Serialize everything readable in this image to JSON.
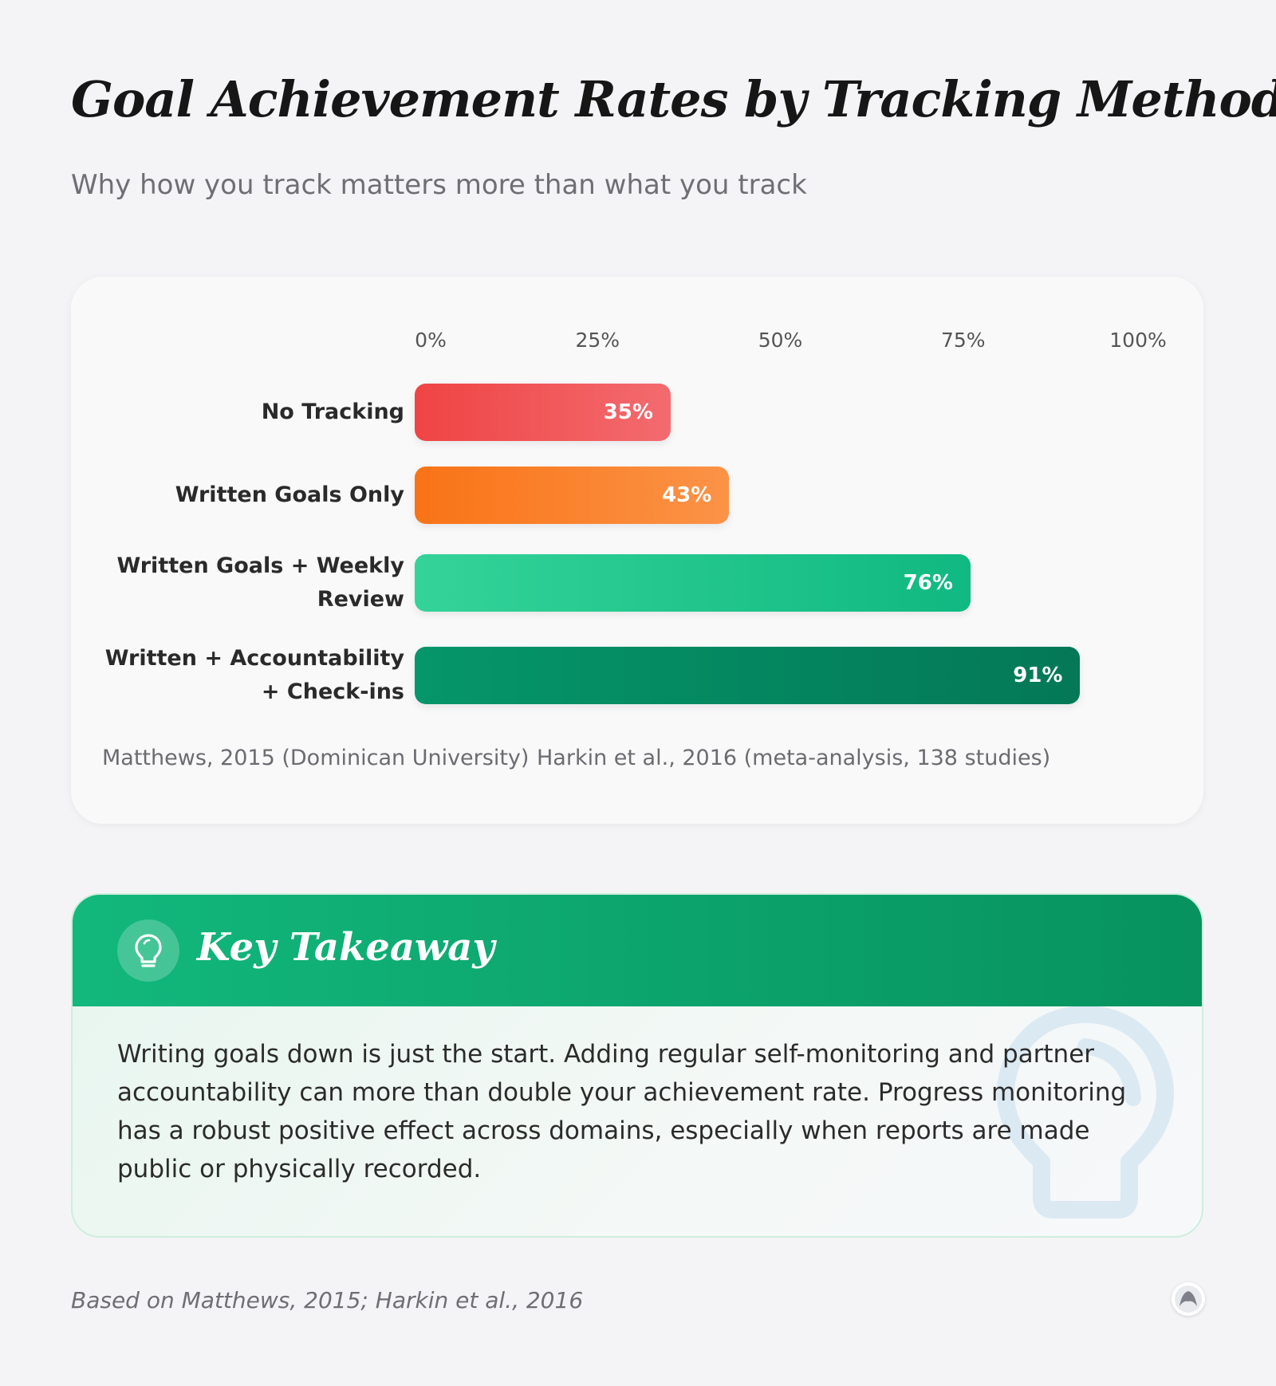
{
  "title": "Goal Achievement Rates by Tracking Method",
  "subtitle": "Why how you track matters more than what you track",
  "chart_data": {
    "type": "bar",
    "orientation": "horizontal",
    "categories": [
      "No Tracking",
      "Written Goals Only",
      "Written Goals + Weekly Review",
      "Written + Accountability + Check-ins"
    ],
    "values": [
      35,
      43,
      76,
      91
    ],
    "value_labels": [
      "35%",
      "43%",
      "76%",
      "91%"
    ],
    "xlim": [
      0,
      100
    ],
    "tick_values": [
      0,
      25,
      50,
      75,
      100
    ],
    "tick_labels": [
      "0%",
      "25%",
      "50%",
      "75%",
      "100%"
    ],
    "bar_colors": [
      [
        "#ef4444",
        "#f36b6f"
      ],
      [
        "#f97316",
        "#fb9347"
      ],
      [
        "#34d399",
        "#10b981"
      ],
      [
        "#059669",
        "#047857"
      ]
    ],
    "sources": [
      "Matthews, 2015 (Dominican University)",
      "Harkin et al., 2016 (meta-analysis, 138 studies)"
    ],
    "grid": false
  },
  "takeaway": {
    "icon": "lightbulb-icon",
    "title": "Key Takeaway",
    "text": "Writing goals down is just the start. Adding regular self-monitoring and partner accountability can more than double your achievement rate. Progress monitoring has a robust positive effect across domains, especially when reports are made public or physically recorded."
  },
  "footer": {
    "note": "Based on Matthews, 2015; Harkin et al., 2016",
    "logo": "brand-logo-icon"
  }
}
